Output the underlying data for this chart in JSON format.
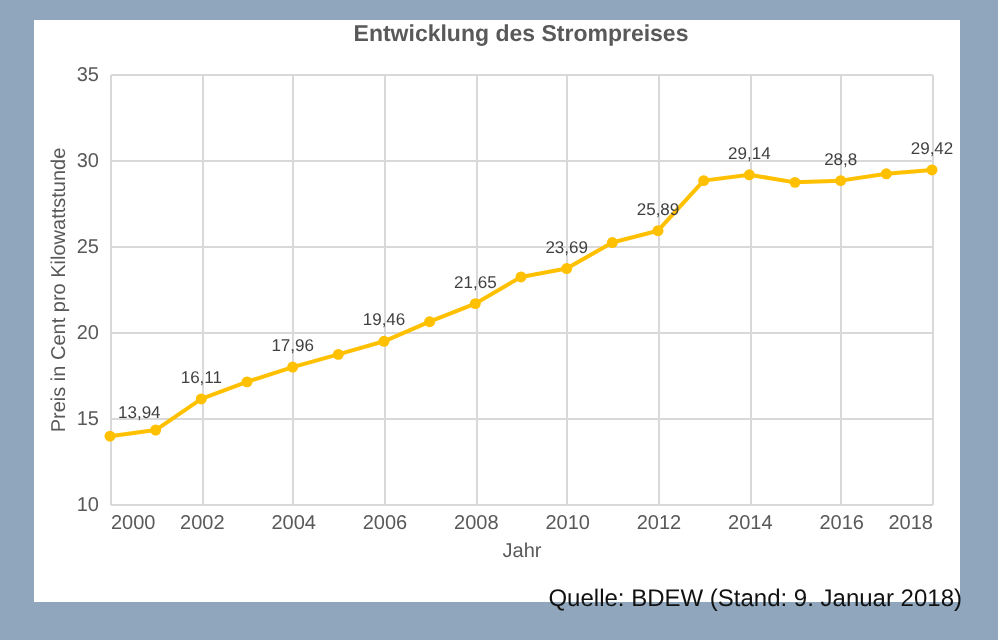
{
  "chart_data": {
    "type": "line",
    "title": "Entwicklung des Strompreises",
    "xlabel": "Jahr",
    "ylabel": "Preis in Cent pro Kilowattstunde",
    "x": [
      2000,
      2001,
      2002,
      2003,
      2004,
      2005,
      2006,
      2007,
      2008,
      2009,
      2010,
      2011,
      2012,
      2013,
      2014,
      2015,
      2016,
      2017,
      2018
    ],
    "series": [
      {
        "color": "#ffc000",
        "values": [
          13.94,
          14.3,
          16.11,
          17.1,
          17.96,
          18.7,
          19.46,
          20.6,
          21.65,
          23.2,
          23.69,
          25.2,
          25.89,
          28.8,
          29.14,
          28.7,
          28.8,
          29.2,
          29.42
        ],
        "value_labels": [
          "13,94",
          null,
          "16,11",
          null,
          "17,96",
          null,
          "19,46",
          null,
          "21,65",
          null,
          "23,69",
          null,
          "25,89",
          null,
          "29,14",
          null,
          "28,8",
          null,
          "29,42"
        ]
      }
    ],
    "xlim": [
      2000,
      2018
    ],
    "xticks": [
      2000,
      2002,
      2004,
      2006,
      2008,
      2010,
      2012,
      2014,
      2016,
      2018
    ],
    "ylim": [
      10,
      35
    ],
    "yticks": [
      10,
      15,
      20,
      25,
      30,
      35
    ],
    "grid": true,
    "marker": "circle",
    "line_style": "solid",
    "legend": false,
    "annotations": [
      "Quelle: BDEW (Stand: 9. Januar 2018)"
    ]
  }
}
